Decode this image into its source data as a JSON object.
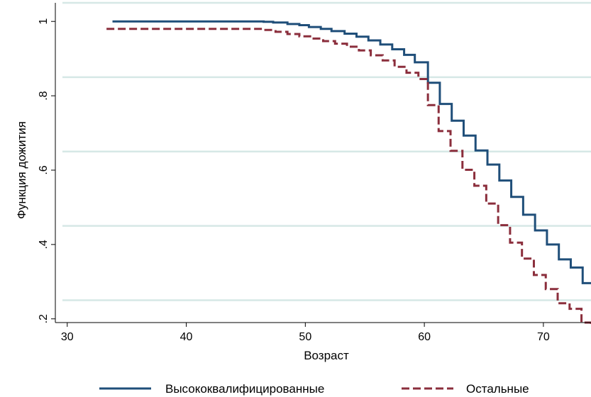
{
  "chart_data": {
    "type": "line",
    "title": "",
    "xlabel": "Возраст",
    "ylabel": "Функция дожития",
    "xlim": [
      29,
      74
    ],
    "ylim": [
      0.19,
      1.05
    ],
    "x_ticks": [
      30,
      40,
      50,
      60,
      70
    ],
    "x_tick_labels": [
      "30",
      "40",
      "50",
      "60",
      "70"
    ],
    "y_ticks": [
      0.2,
      0.4,
      0.6,
      0.8,
      1.0
    ],
    "y_tick_labels": [
      ".2",
      ".4",
      ".6",
      ".8",
      "1"
    ],
    "grid": true,
    "legend_position": "bottom",
    "series": [
      {
        "name": "Высококвалифицированные",
        "color": "#1f4e79",
        "dash": "solid",
        "step": true,
        "x": [
          33.8,
          46.5,
          47.3,
          48.5,
          49.5,
          50.3,
          51.3,
          52.2,
          53.3,
          54.3,
          55.3,
          56.3,
          57.3,
          58.3,
          59.2,
          60.3,
          61.3,
          62.3,
          63.3,
          64.3,
          65.3,
          66.3,
          67.3,
          68.3,
          69.3,
          70.3,
          71.3,
          72.3,
          73.3,
          74.0
        ],
        "y": [
          1.0,
          0.999,
          0.997,
          0.993,
          0.99,
          0.985,
          0.98,
          0.974,
          0.967,
          0.959,
          0.949,
          0.938,
          0.925,
          0.91,
          0.89,
          0.835,
          0.778,
          0.733,
          0.693,
          0.653,
          0.615,
          0.572,
          0.528,
          0.48,
          0.438,
          0.4,
          0.36,
          0.338,
          0.296,
          0.296
        ]
      },
      {
        "name": "Остальные",
        "color": "#8b2e3c",
        "dash": "dashed",
        "step": true,
        "x": [
          33.3,
          46.5,
          47.5,
          48.5,
          49.5,
          50.5,
          51.5,
          52.5,
          53.5,
          54.5,
          55.5,
          56.5,
          57.5,
          58.5,
          59.5,
          60.3,
          61.2,
          62.2,
          63.2,
          64.2,
          65.2,
          66.2,
          67.2,
          68.2,
          69.2,
          70.2,
          71.2,
          72.2,
          73.2,
          74.0
        ],
        "y": [
          0.98,
          0.977,
          0.972,
          0.966,
          0.96,
          0.954,
          0.947,
          0.94,
          0.932,
          0.922,
          0.909,
          0.895,
          0.878,
          0.862,
          0.845,
          0.775,
          0.705,
          0.652,
          0.601,
          0.558,
          0.51,
          0.452,
          0.405,
          0.362,
          0.318,
          0.28,
          0.242,
          0.227,
          0.19,
          0.18
        ]
      }
    ]
  }
}
